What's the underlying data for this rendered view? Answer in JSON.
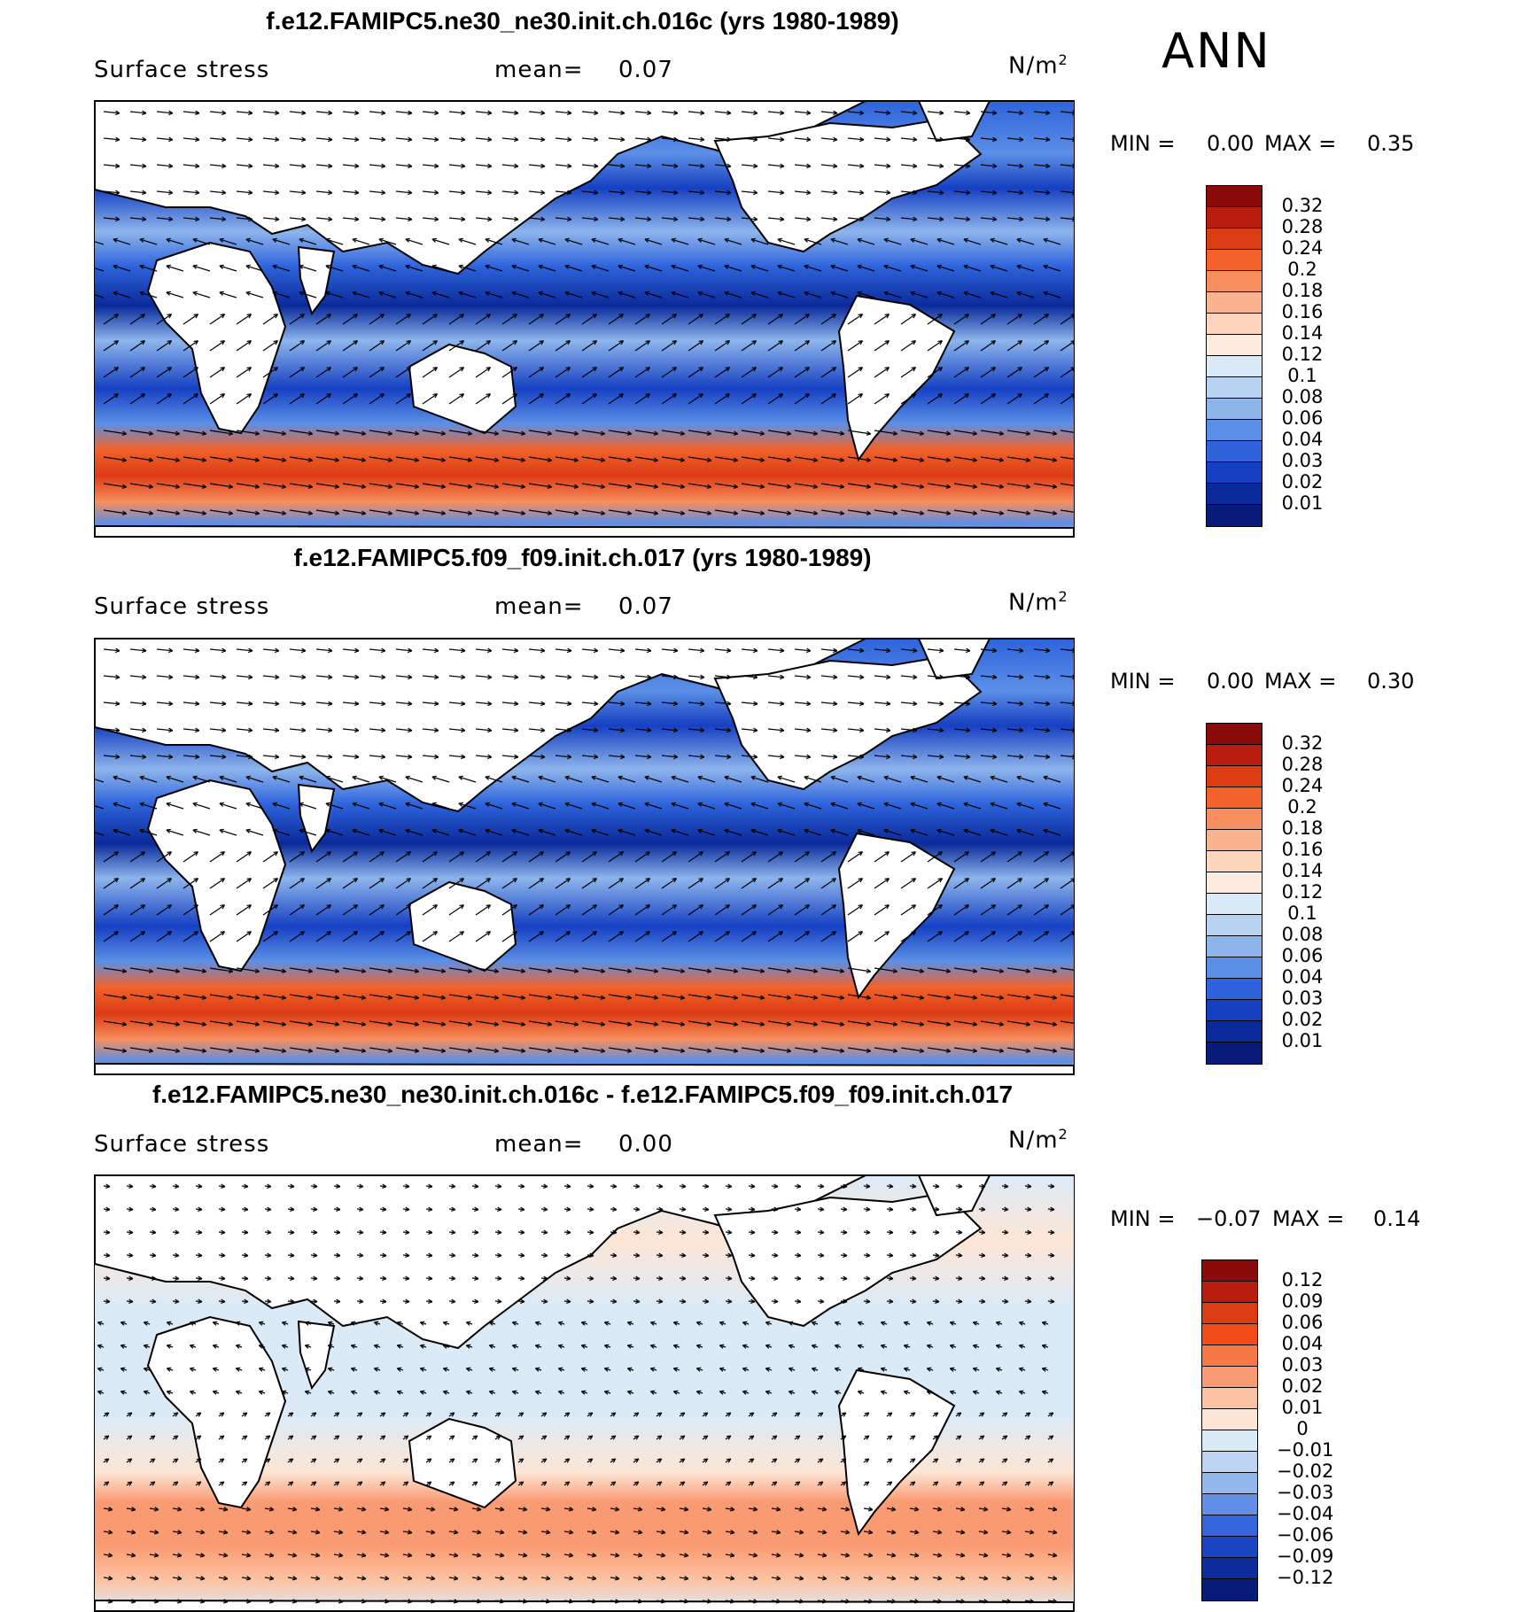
{
  "season": "ANN",
  "panels": [
    {
      "title": "f.e12.FAMIPC5.ne30_ne30.init.ch.016c (yrs 1980-1989)",
      "variable": "Surface stress",
      "mean_label": "mean=",
      "mean_value": "0.07",
      "units": "N/m",
      "units_sup": "2",
      "min_label": "MIN =",
      "min_value": "0.00",
      "max_label": "MAX =",
      "max_value": "0.35",
      "colorbar_ticks": [
        "0.32",
        "0.28",
        "0.24",
        "0.2",
        "0.18",
        "0.16",
        "0.14",
        "0.12",
        "0.1",
        "0.08",
        "0.06",
        "0.04",
        "0.03",
        "0.02",
        "0.01"
      ],
      "colorbar_colors": [
        "#8b0a0a",
        "#b81d0e",
        "#dc3c12",
        "#f2622a",
        "#f78e5e",
        "#fab490",
        "#fdd6bd",
        "#fdecdf",
        "#dbeaf7",
        "#b7d3f1",
        "#8db5ec",
        "#5b8fe6",
        "#2e63dc",
        "#1640c2",
        "#0a2a9a",
        "#061c78"
      ]
    },
    {
      "title": "f.e12.FAMIPC5.f09_f09.init.ch.017 (yrs 1980-1989)",
      "variable": "Surface stress",
      "mean_label": "mean=",
      "mean_value": "0.07",
      "units": "N/m",
      "units_sup": "2",
      "min_label": "MIN =",
      "min_value": "0.00",
      "max_label": "MAX =",
      "max_value": "0.30",
      "colorbar_ticks": [
        "0.32",
        "0.28",
        "0.24",
        "0.2",
        "0.18",
        "0.16",
        "0.14",
        "0.12",
        "0.1",
        "0.08",
        "0.06",
        "0.04",
        "0.03",
        "0.02",
        "0.01"
      ],
      "colorbar_colors": [
        "#8b0a0a",
        "#b81d0e",
        "#dc3c12",
        "#f2622a",
        "#f78e5e",
        "#fab490",
        "#fdd6bd",
        "#fdecdf",
        "#dbeaf7",
        "#b7d3f1",
        "#8db5ec",
        "#5b8fe6",
        "#2e63dc",
        "#1640c2",
        "#0a2a9a",
        "#061c78"
      ]
    },
    {
      "title": "f.e12.FAMIPC5.ne30_ne30.init.ch.016c - f.e12.FAMIPC5.f09_f09.init.ch.017",
      "variable": "Surface stress",
      "mean_label": "mean=",
      "mean_value": "0.00",
      "units": "N/m",
      "units_sup": "2",
      "min_label": "MIN =",
      "min_value": "−0.07",
      "max_label": "MAX =",
      "max_value": "0.14",
      "colorbar_ticks": [
        "0.12",
        "0.09",
        "0.06",
        "0.04",
        "0.03",
        "0.02",
        "0.01",
        "0",
        "−0.01",
        "−0.02",
        "−0.03",
        "−0.04",
        "−0.06",
        "−0.09",
        "−0.12"
      ],
      "colorbar_colors": [
        "#8b0a0a",
        "#b81d0e",
        "#dc3c12",
        "#f24d18",
        "#f77a46",
        "#f99b72",
        "#fcc3a2",
        "#fde6d6",
        "#dbeaf7",
        "#bdd5f3",
        "#93b8ee",
        "#628ee6",
        "#3366dc",
        "#1a44c2",
        "#0c2c9c",
        "#061c78"
      ]
    }
  ]
}
